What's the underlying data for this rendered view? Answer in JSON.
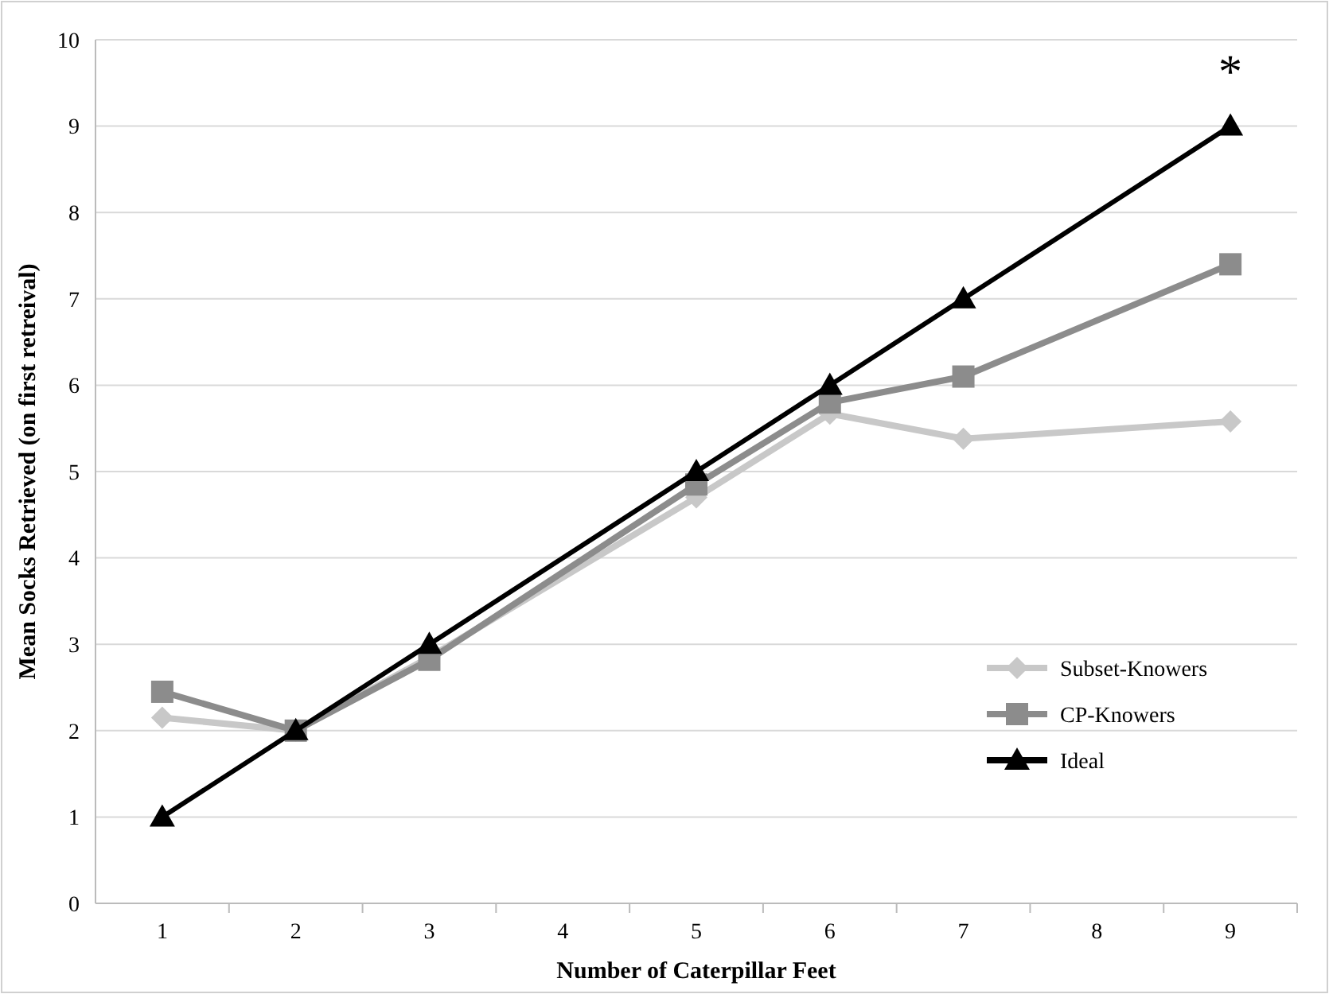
{
  "chart_data": {
    "type": "line",
    "xlabel": "Number of Caterpillar Feet",
    "ylabel": "Mean Socks Retrieved (on first retreival)",
    "x": [
      1,
      2,
      3,
      5,
      6,
      7,
      9
    ],
    "xlim": [
      0.5,
      9.5
    ],
    "xticks": [
      1,
      2,
      3,
      4,
      5,
      6,
      7,
      8,
      9
    ],
    "ylim": [
      0,
      10
    ],
    "yticks": [
      0,
      1,
      2,
      3,
      4,
      5,
      6,
      7,
      8,
      9,
      10
    ],
    "grid": "y",
    "legend": "right",
    "series": [
      {
        "name": "Subset-Knowers",
        "color": "#c8c8c8",
        "marker": "diamond",
        "values": [
          2.15,
          2.0,
          2.85,
          4.7,
          5.67,
          5.38,
          5.58
        ]
      },
      {
        "name": "CP-Knowers",
        "color": "#8c8c8c",
        "marker": "square",
        "values": [
          2.45,
          2.0,
          2.82,
          4.85,
          5.8,
          6.1,
          7.4
        ]
      },
      {
        "name": "Ideal",
        "color": "#000000",
        "marker": "triangle",
        "values": [
          1,
          2,
          3,
          5,
          6,
          7,
          9
        ]
      }
    ],
    "annotations": [
      "*"
    ]
  }
}
